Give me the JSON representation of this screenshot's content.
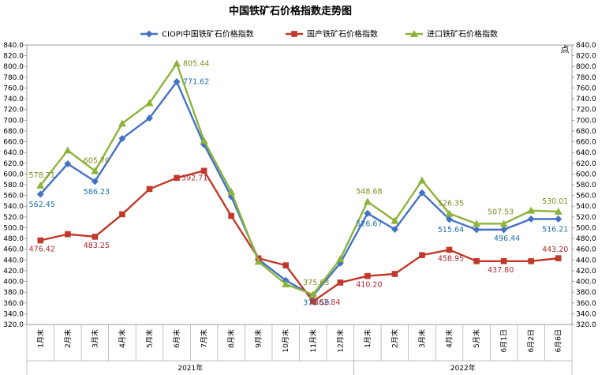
{
  "chart_data": {
    "type": "line",
    "title": "中国铁矿石价格指数走势图",
    "right_axis_unit": "点",
    "ylim": [
      320,
      840
    ],
    "ytick_step": 20,
    "categories": [
      "1月末",
      "2月末",
      "3月末",
      "4月末",
      "5月末",
      "6月末",
      "7月末",
      "8月末",
      "9月末",
      "10月末",
      "11月末",
      "12月末",
      "1月末",
      "2月末",
      "3月末",
      "4月末",
      "5月末",
      "6月1日",
      "6月2日",
      "6月6日"
    ],
    "year_groups": [
      {
        "label": "2021年",
        "start": 0,
        "end": 11
      },
      {
        "label": "2022年",
        "start": 12,
        "end": 19
      }
    ],
    "legend_position": "top",
    "series": [
      {
        "name": "CIOPI中国铁矿石价格指数",
        "color": "#4472C4",
        "marker": "diamond",
        "label_color": "#1F6FA8",
        "values": [
          562.45,
          619,
          586.23,
          666,
          704,
          771.62,
          655,
          558,
          441,
          402,
          373.59,
          434,
          526.67,
          497,
          565,
          515.64,
          496.44,
          496.44,
          516.21,
          516.21
        ],
        "labels": {
          "0": "562.45",
          "2": "586.23",
          "5": "771.62",
          "10": "373.59",
          "12": "526.67",
          "15": "515.64",
          "17": "496.44",
          "19": "516.21"
        }
      },
      {
        "name": "国产铁矿石价格指数",
        "color": "#C0392B",
        "marker": "square",
        "label_color": "#B0282E",
        "values": [
          476.42,
          488,
          483.25,
          525,
          572,
          592.71,
          606,
          522,
          443,
          430,
          362.84,
          398,
          410.2,
          414,
          449,
          458.95,
          437.8,
          437.8,
          437.8,
          443.2
        ],
        "labels": {
          "0": "476.42",
          "2": "483.25",
          "5": "592.71",
          "10": "362.84",
          "12": "410.20",
          "15": "458.95",
          "17": "437.80",
          "19": "443.20"
        }
      },
      {
        "name": "进口铁矿石价格指数",
        "color": "#8DB33A",
        "marker": "triangle",
        "label_color": "#7F8C1F",
        "values": [
          578.71,
          644,
          605.7,
          694,
          732,
          805.44,
          662,
          567,
          437,
          395,
          375.63,
          442,
          548.68,
          513,
          588,
          526.35,
          507.53,
          507.53,
          532,
          530.01
        ],
        "labels": {
          "0": "578.71",
          "2": "605.70",
          "5": "805.44",
          "10": "375.63",
          "12": "548.68",
          "15": "526.35",
          "17": "507.53",
          "19": "530.01"
        }
      }
    ]
  }
}
